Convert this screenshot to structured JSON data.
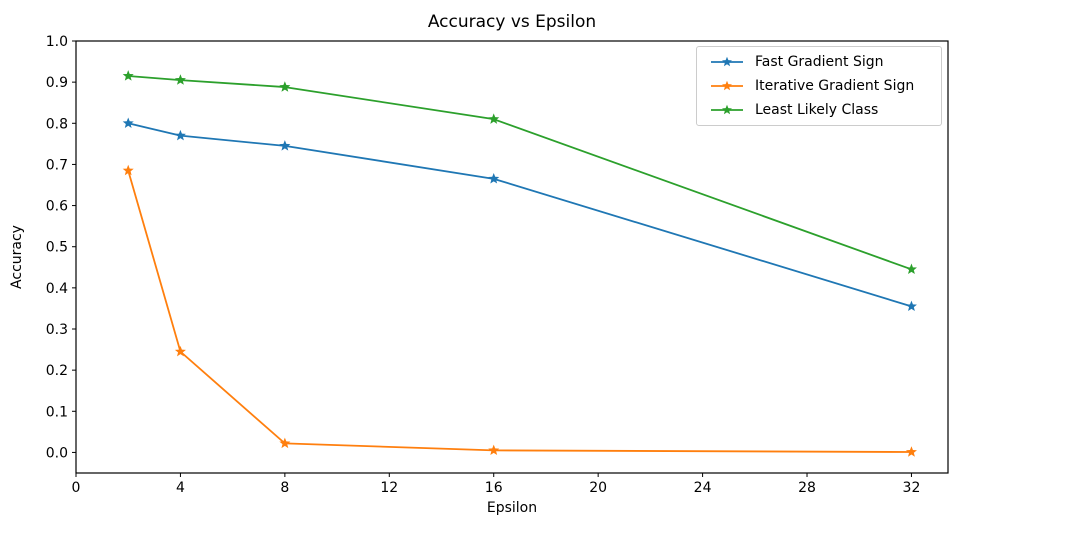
{
  "figure": {
    "background": "#ffffff",
    "text_color": "#000000",
    "spine_color": "#000000",
    "legend_border_color": "#cccccc"
  },
  "chart_data": {
    "type": "line",
    "title": "Accuracy vs Epsilon",
    "xlabel": "Epsilon",
    "ylabel": "Accuracy",
    "x": [
      2,
      4,
      8,
      16,
      32
    ],
    "series": [
      {
        "name": "Fast Gradient Sign",
        "color": "#1f77b4",
        "marker": "star",
        "values": [
          0.8,
          0.77,
          0.745,
          0.665,
          0.355
        ]
      },
      {
        "name": "Iterative Gradient Sign",
        "color": "#ff7f0e",
        "marker": "star",
        "values": [
          0.685,
          0.245,
          0.022,
          0.005,
          0.001
        ]
      },
      {
        "name": "Least Likely Class",
        "color": "#2ca02c",
        "marker": "star",
        "values": [
          0.915,
          0.905,
          0.888,
          0.81,
          0.445
        ]
      }
    ],
    "xticks": [
      0,
      4,
      8,
      12,
      16,
      20,
      24,
      28,
      32
    ],
    "yticks": [
      0.0,
      0.1,
      0.2,
      0.3,
      0.4,
      0.5,
      0.6,
      0.7,
      0.8,
      0.9,
      1.0
    ],
    "xlim": [
      0,
      33.4
    ],
    "ylim": [
      -0.05,
      1.0
    ],
    "grid": false,
    "legend_position": "upper right"
  }
}
